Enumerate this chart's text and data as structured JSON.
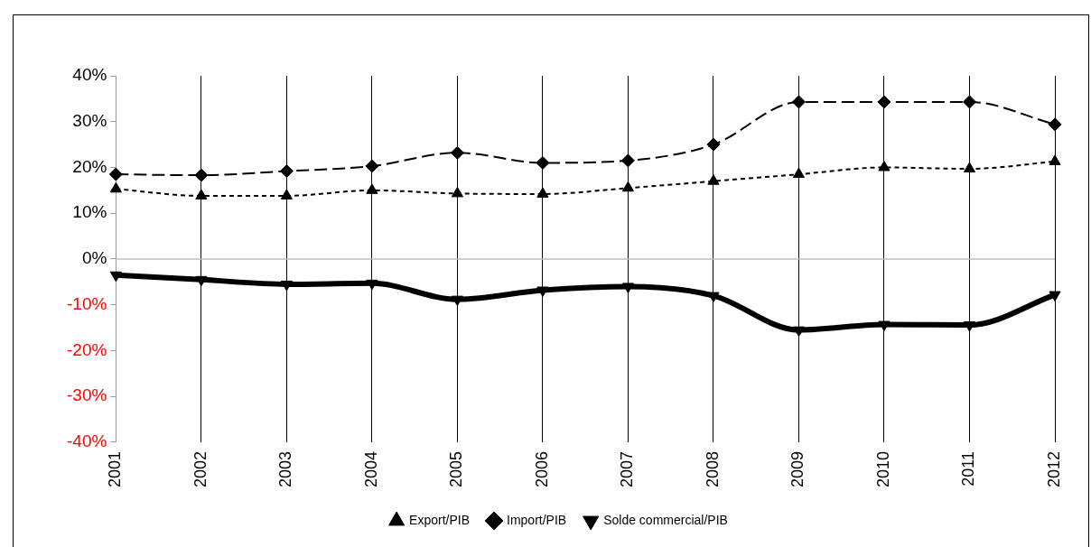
{
  "chart_data": {
    "type": "line",
    "categories": [
      "2001",
      "2002",
      "2003",
      "2004",
      "2005",
      "2006",
      "2007",
      "2008",
      "2009",
      "2010",
      "2011",
      "2012"
    ],
    "series": [
      {
        "name": "Export/PIB",
        "color": "#000000",
        "marker": "triangle",
        "line_style": "dotted",
        "values": [
          15.3,
          13.8,
          13.8,
          15.0,
          14.3,
          14.2,
          15.5,
          17.0,
          18.5,
          20.0,
          19.7,
          21.3
        ]
      },
      {
        "name": "Import/PIB",
        "color": "#000000",
        "marker": "diamond",
        "line_style": "dashed",
        "values": [
          18.5,
          18.3,
          19.2,
          20.3,
          23.2,
          21.0,
          21.5,
          25.0,
          34.3,
          34.3,
          34.3,
          29.4
        ]
      },
      {
        "name": "Solde commercial/PIB",
        "color": "#000000",
        "marker": "triangle-down",
        "line_style": "solid",
        "values": [
          -3.5,
          -4.5,
          -5.5,
          -5.3,
          -8.8,
          -6.8,
          -6.0,
          -8.0,
          -15.5,
          -14.3,
          -14.4,
          -7.8
        ]
      }
    ],
    "ylim": [
      -40,
      40
    ],
    "yticks": [
      {
        "value": -40,
        "label": "-40%"
      },
      {
        "value": -30,
        "label": "-30%"
      },
      {
        "value": -20,
        "label": "-20%"
      },
      {
        "value": -10,
        "label": "-10%"
      },
      {
        "value": 0,
        "label": "0%"
      },
      {
        "value": 10,
        "label": "10%"
      },
      {
        "value": 20,
        "label": "20%"
      },
      {
        "value": 30,
        "label": "30%"
      },
      {
        "value": 40,
        "label": "40%"
      }
    ],
    "grid": "x",
    "legend": "bottom",
    "ref_lines": [
      {
        "axis": "y",
        "value": 0,
        "color": "#bfbfbf"
      }
    ]
  }
}
